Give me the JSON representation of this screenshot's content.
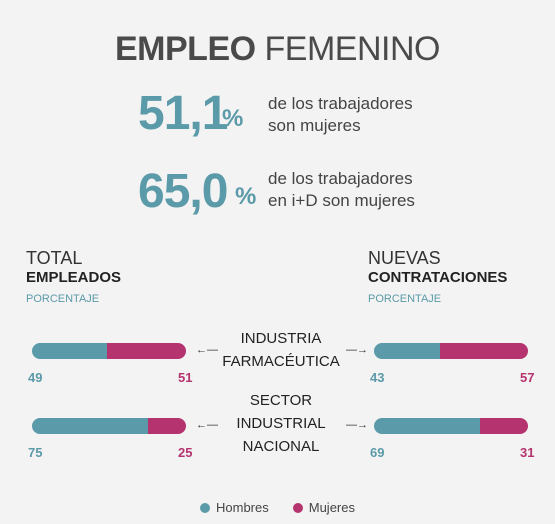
{
  "header": {
    "title_bold": "EMPLEO",
    "title_light": "FEMENINO"
  },
  "stats": [
    {
      "value": "51,1",
      "unit": "%",
      "line1": "de los trabajadores",
      "line2": "son mujeres"
    },
    {
      "value": "65,0",
      "unit": "%",
      "line1": "de los trabajadores",
      "line2": "en  i+D son mujeres"
    }
  ],
  "columns": {
    "left": {
      "line1": "TOTAL",
      "line2": "EMPLEADOS",
      "line3": "PORCENTAJE"
    },
    "right": {
      "line1": "NUEVAS",
      "line2": "CONTRATACIONES",
      "line3": "PORCENTAJE"
    }
  },
  "colors": {
    "hombres": "#5b9aa9",
    "mujeres": "#b5336f"
  },
  "chart_data": {
    "type": "bar",
    "stacked": true,
    "categories": [
      "INDUSTRIA FARMACÉUTICA",
      "SECTOR INDUSTRIAL NACIONAL"
    ],
    "category_lines": [
      [
        "INDUSTRIA",
        "FARMACÉUTICA"
      ],
      [
        "SECTOR",
        "INDUSTRIAL",
        "NACIONAL"
      ]
    ],
    "groups": [
      {
        "name": "TOTAL EMPLEADOS",
        "series": [
          {
            "name": "Hombres",
            "values": [
              49,
              75
            ]
          },
          {
            "name": "Mujeres",
            "values": [
              51,
              25
            ]
          }
        ]
      },
      {
        "name": "NUEVAS CONTRATACIONES",
        "series": [
          {
            "name": "Hombres",
            "values": [
              43,
              69
            ]
          },
          {
            "name": "Mujeres",
            "values": [
              57,
              31
            ]
          }
        ]
      }
    ],
    "unit": "PORCENTAJE",
    "legend": [
      "Hombres",
      "Mujeres"
    ],
    "legend_position": "bottom"
  }
}
